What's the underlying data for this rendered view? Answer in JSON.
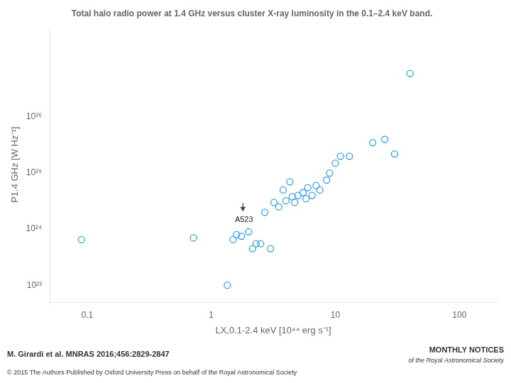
{
  "chart_data": {
    "type": "scatter",
    "title": "Total halo radio power at 1.4 GHz versus cluster X-ray luminosity in the 0.1–2.4 keV band.",
    "x_label": "LX,0.1-2.4 keV [10⁴⁴ erg s⁻¹]",
    "y_label": "P1.4 GHz [W Hz⁻¹]",
    "x": [
      0.09,
      0.72,
      1.35,
      1.5,
      1.6,
      1.75,
      2.0,
      2.15,
      2.3,
      2.5,
      2.7,
      3.0,
      3.2,
      3.5,
      3.8,
      4.0,
      4.3,
      4.5,
      4.7,
      5.0,
      5.5,
      5.8,
      6.0,
      6.5,
      7.0,
      7.5,
      8.5,
      9.0,
      10.0,
      11.0,
      13.0,
      20.0,
      25.0,
      30.0,
      40.0
    ],
    "values": [
      6.5e+23,
      7e+23,
      1e+23,
      6.5e+23,
      8e+23,
      7.5e+23,
      9e+23,
      4.5e+23,
      5.5e+23,
      5.5e+23,
      2e+24,
      4.5e+23,
      3e+24,
      2.5e+24,
      5e+24,
      3.2e+24,
      7e+24,
      3.8e+24,
      3e+24,
      4e+24,
      4.5e+24,
      3.5e+24,
      5.5e+24,
      4e+24,
      6e+24,
      5e+24,
      7.5e+24,
      1e+25,
      1.5e+25,
      2e+25,
      2e+25,
      3.5e+25,
      4e+25,
      2.2e+25,
      6e+26
    ],
    "log": true,
    "xlim": [
      0.05,
      200
    ],
    "ylim": [
      5e+22,
      4e+27
    ],
    "xticks": [
      0.1,
      1,
      10,
      100
    ],
    "yticks": [
      {
        "value": 1e+23,
        "label": "10²³"
      },
      {
        "value": 1e+24,
        "label": "10²⁴"
      },
      {
        "value": 1e+25,
        "label": "10²⁵"
      },
      {
        "value": 1e+26,
        "label": "10²⁶"
      }
    ],
    "grid": false,
    "marker": "circle",
    "annotations": [
      {
        "text": "A523",
        "x": 1.55,
        "y": 1.7e+24,
        "arrow": {
          "x": 1.8,
          "y_start": 2.9e+24,
          "y_end": 2.1e+24
        }
      },
      {
        "text": "M. Girardi et al. MNRAS 2016;456:2829-2847"
      },
      {
        "text": "© 2015 The Authors Published by Oxford University Press on behalf of the Royal Astronomical Society"
      },
      {
        "text": "MONTHLY NOTICES"
      },
      {
        "text": "of the Royal Astronomical Society"
      }
    ]
  }
}
